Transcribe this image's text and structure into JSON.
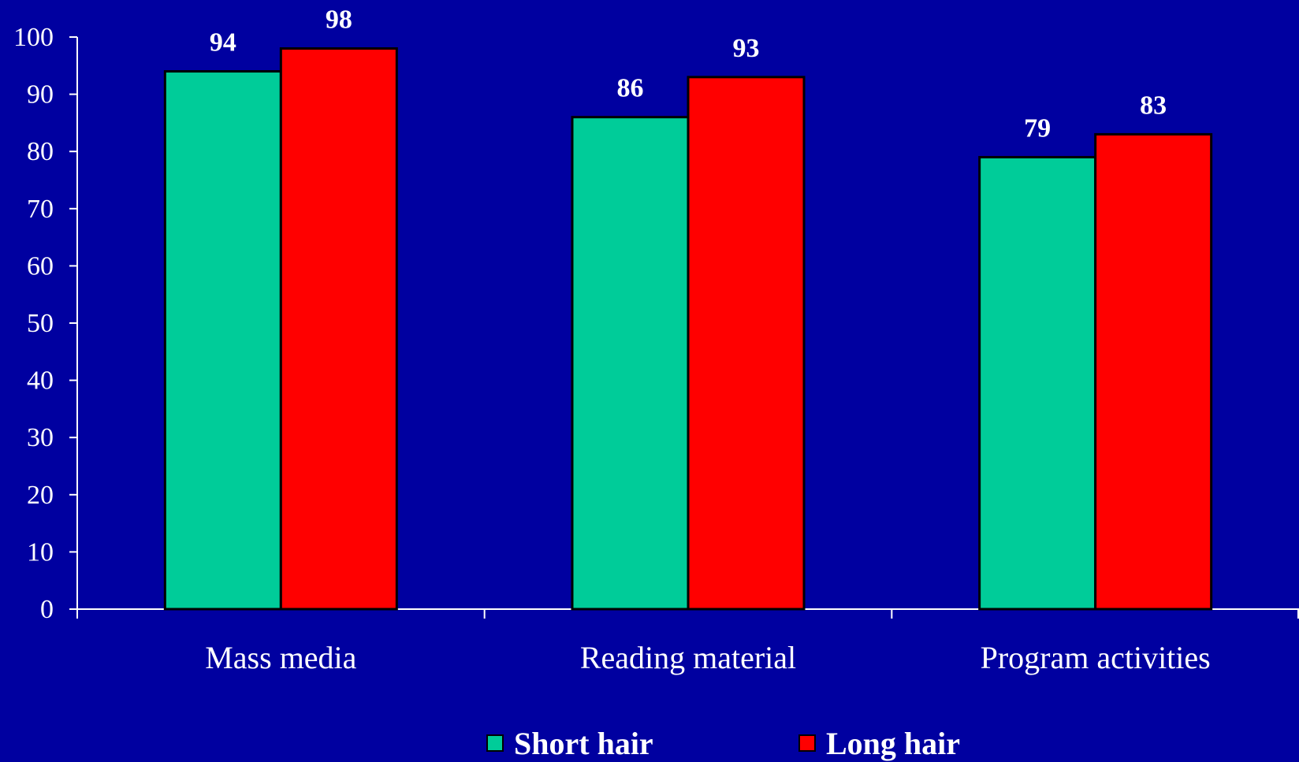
{
  "chart_data": {
    "type": "bar",
    "title": "",
    "xlabel": "",
    "ylabel": "",
    "categories": [
      "Mass media",
      "Reading material",
      "Program activities"
    ],
    "series": [
      {
        "name": "Short hair",
        "color": "#00CC99",
        "values": [
          94,
          86,
          79
        ]
      },
      {
        "name": "Long hair",
        "color": "#FF0000",
        "values": [
          98,
          93,
          83
        ]
      }
    ],
    "ylim": [
      0,
      100
    ],
    "yticks": [
      0,
      10,
      20,
      30,
      40,
      50,
      60,
      70,
      80,
      90,
      100
    ],
    "grid": false,
    "data_labels": true,
    "legend_position": "bottom",
    "background_color": "#0000A0",
    "axis_color": "#FFFFFF",
    "text_color": "#FFFFFF"
  }
}
